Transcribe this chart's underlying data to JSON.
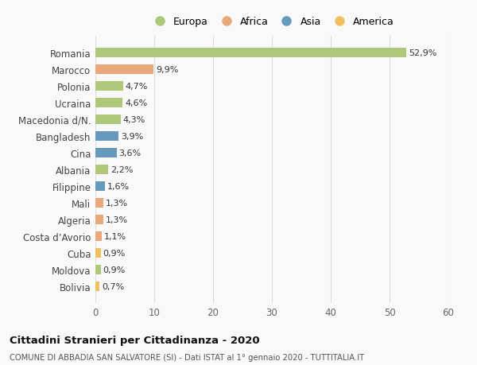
{
  "countries": [
    "Romania",
    "Marocco",
    "Polonia",
    "Ucraina",
    "Macedonia d/N.",
    "Bangladesh",
    "Cina",
    "Albania",
    "Filippine",
    "Mali",
    "Algeria",
    "Costa d’Avorio",
    "Cuba",
    "Moldova",
    "Bolivia"
  ],
  "values": [
    52.9,
    9.9,
    4.7,
    4.6,
    4.3,
    3.9,
    3.6,
    2.2,
    1.6,
    1.3,
    1.3,
    1.1,
    0.9,
    0.9,
    0.7
  ],
  "labels": [
    "52,9%",
    "9,9%",
    "4,7%",
    "4,6%",
    "4,3%",
    "3,9%",
    "3,6%",
    "2,2%",
    "1,6%",
    "1,3%",
    "1,3%",
    "1,1%",
    "0,9%",
    "0,9%",
    "0,7%"
  ],
  "colors": [
    "#adc878",
    "#e8a87c",
    "#adc878",
    "#adc878",
    "#adc878",
    "#6699bb",
    "#6699bb",
    "#adc878",
    "#6699bb",
    "#e8a87c",
    "#e8a87c",
    "#e8a87c",
    "#f0c060",
    "#adc878",
    "#f0c060"
  ],
  "legend_labels": [
    "Europa",
    "Africa",
    "Asia",
    "America"
  ],
  "legend_colors": [
    "#adc878",
    "#e8a87c",
    "#6699bb",
    "#f0c060"
  ],
  "xlim": [
    0,
    60
  ],
  "xticks": [
    0,
    10,
    20,
    30,
    40,
    50,
    60
  ],
  "title": "Cittadini Stranieri per Cittadinanza - 2020",
  "subtitle": "COMUNE DI ABBADIA SAN SALVATORE (SI) - Dati ISTAT al 1° gennaio 2020 - TUTTITALIA.IT",
  "bg_color": "#f9f9f9",
  "grid_color": "#dddddd",
  "bar_height": 0.55
}
